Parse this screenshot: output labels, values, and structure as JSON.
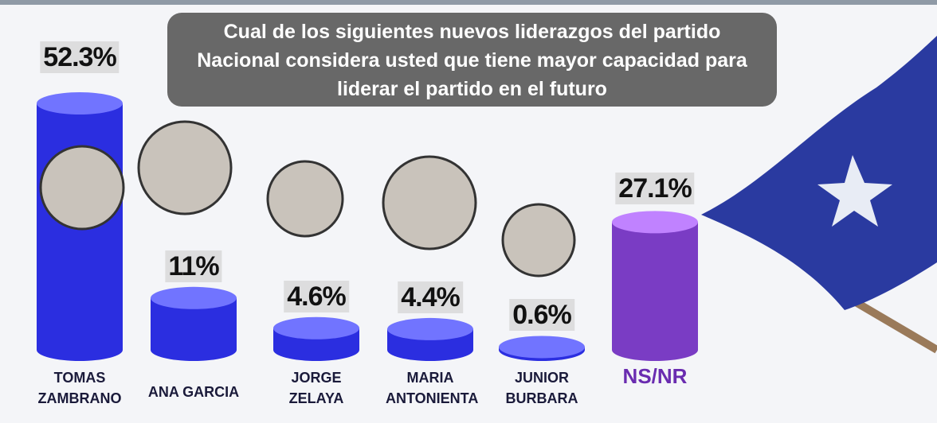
{
  "chart_data": {
    "type": "bar",
    "title": "Cual de los  siguientes nuevos liderazgos del partido Nacional considera usted que  tiene mayor capacidad para liderar el partido en el futuro",
    "categories": [
      "TOMAS ZAMBRANO",
      "ANA GARCIA",
      "JORGE ZELAYA",
      "MARIA ANTONIENTA",
      "JUNIOR BURBARA",
      "NS/NR"
    ],
    "values": [
      52.3,
      11,
      4.6,
      4.4,
      0.6,
      27.1
    ],
    "value_labels": [
      "52.3%",
      "11%",
      "4.6%",
      "4.4%",
      "0.6%",
      "27.1%"
    ],
    "colors": [
      "#2b2ee0",
      "#2b2ee0",
      "#2b2ee0",
      "#2b2ee0",
      "#2b2ee0",
      "#7a3cc4"
    ]
  }
}
